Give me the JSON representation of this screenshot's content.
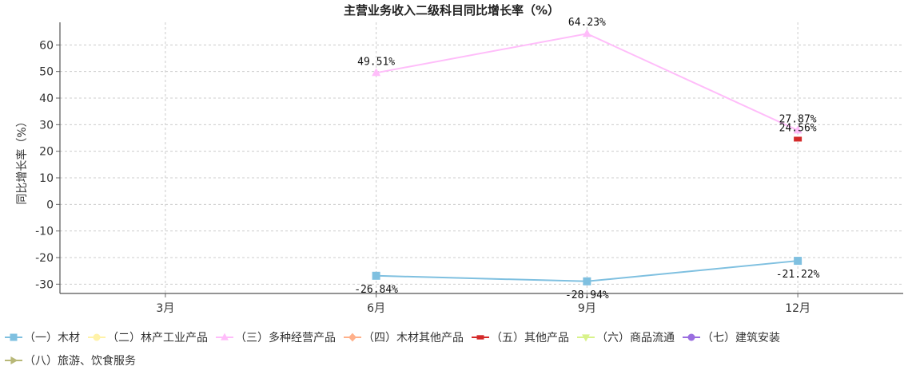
{
  "chart_data": {
    "type": "line",
    "title": "主营业务收入二级科目同比增长率（%）",
    "xlabel": "",
    "ylabel": "同比增长率（%）",
    "categories": [
      "3月",
      "6月",
      "9月",
      "12月"
    ],
    "ylim": [
      -33.5,
      68.5
    ],
    "yticks": [
      -30,
      -20,
      -10,
      0,
      10,
      20,
      30,
      40,
      50,
      60
    ],
    "grid": true,
    "legend_position": "bottom",
    "series": [
      {
        "name": "（一）木材",
        "color": "#7fc0e0",
        "marker": "square",
        "values": [
          null,
          -26.84,
          -28.94,
          -21.22
        ],
        "labels": [
          null,
          "-26.84%",
          "-28.94%",
          "-21.22%"
        ],
        "label_position": "below"
      },
      {
        "name": "（二）林产工业产品",
        "color": "#fff2a8",
        "marker": "circle",
        "values": [
          null,
          null,
          null,
          null
        ],
        "labels": [
          null,
          null,
          null,
          null
        ]
      },
      {
        "name": "（三）多种经营产品",
        "color": "#ffbdfa",
        "marker": "triangle-up",
        "values": [
          null,
          49.51,
          64.23,
          27.87
        ],
        "labels": [
          null,
          "49.51%",
          "64.23%",
          "27.87%"
        ],
        "label_position": "above"
      },
      {
        "name": "（四）木材其他产品",
        "color": "#ffb08a",
        "marker": "diamond",
        "values": [
          null,
          null,
          null,
          null
        ],
        "labels": [
          null,
          null,
          null,
          null
        ]
      },
      {
        "name": "（五）其他产品",
        "color": "#d42a2a",
        "marker": "rect",
        "values": [
          null,
          null,
          null,
          24.56
        ],
        "labels": [
          null,
          null,
          null,
          "24.56%"
        ],
        "label_position": "above"
      },
      {
        "name": "（六）商品流通",
        "color": "#d8f28a",
        "marker": "triangle-down",
        "values": [
          null,
          null,
          null,
          null
        ],
        "labels": [
          null,
          null,
          null,
          null
        ]
      },
      {
        "name": "（七）建筑安装",
        "color": "#9a6ee0",
        "marker": "circle",
        "values": [
          null,
          null,
          null,
          null
        ],
        "labels": [
          null,
          null,
          null,
          null
        ]
      },
      {
        "name": "（八）旅游、饮食服务",
        "color": "#b8b878",
        "marker": "triangle-right",
        "values": [
          null,
          null,
          null,
          null
        ],
        "labels": [
          null,
          null,
          null,
          null
        ]
      }
    ]
  }
}
